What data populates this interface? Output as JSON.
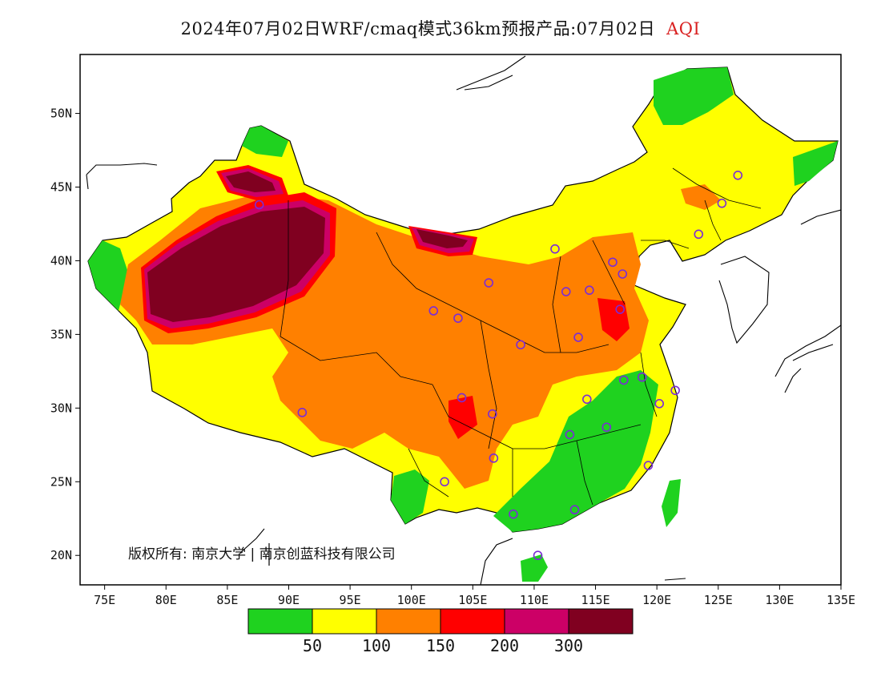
{
  "title": {
    "main": "2024年07月02日WRF/cmaq模式36km预报产品:07月02日",
    "variable": "AQI"
  },
  "map": {
    "lon_range": [
      73,
      135
    ],
    "lat_range": [
      18,
      54
    ],
    "x_ticks": [
      "75E",
      "80E",
      "85E",
      "90E",
      "95E",
      "100E",
      "105E",
      "110E",
      "115E",
      "120E",
      "125E",
      "130E",
      "135E"
    ],
    "y_ticks": [
      "20N",
      "25N",
      "30N",
      "35N",
      "40N",
      "45N",
      "50N"
    ],
    "copyright": "版权所有: 南京大学 | 南京创蓝科技有限公司"
  },
  "colorbar": {
    "colors": [
      "#1fd21f",
      "#ffff00",
      "#ff8000",
      "#ff0000",
      "#cc0066",
      "#800020"
    ],
    "labels": [
      "50",
      "100",
      "150",
      "200",
      "300"
    ],
    "categories": [
      "0-50",
      "50-100",
      "100-150",
      "150-200",
      "200-300",
      ">300"
    ]
  },
  "stations": [
    [
      87.6,
      43.8
    ],
    [
      91.1,
      29.7
    ],
    [
      101.8,
      36.6
    ],
    [
      103.8,
      36.1
    ],
    [
      106.3,
      38.5
    ],
    [
      111.7,
      40.8
    ],
    [
      116.4,
      39.9
    ],
    [
      117.2,
      39.1
    ],
    [
      114.5,
      38.0
    ],
    [
      112.6,
      37.9
    ],
    [
      117.0,
      36.7
    ],
    [
      113.6,
      34.8
    ],
    [
      108.9,
      34.3
    ],
    [
      104.1,
      30.7
    ],
    [
      106.6,
      29.6
    ],
    [
      106.7,
      26.6
    ],
    [
      102.7,
      25.0
    ],
    [
      108.3,
      22.8
    ],
    [
      113.3,
      23.1
    ],
    [
      110.3,
      20.0
    ],
    [
      112.9,
      28.2
    ],
    [
      114.3,
      30.6
    ],
    [
      115.9,
      28.7
    ],
    [
      119.3,
      26.1
    ],
    [
      120.2,
      30.3
    ],
    [
      118.8,
      32.1
    ],
    [
      117.3,
      31.9
    ],
    [
      121.5,
      31.2
    ],
    [
      123.4,
      41.8
    ],
    [
      125.3,
      43.9
    ],
    [
      126.6,
      45.8
    ]
  ]
}
